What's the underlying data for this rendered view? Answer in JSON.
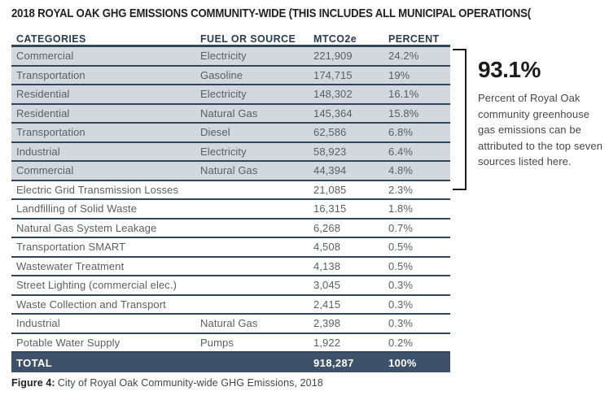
{
  "title": "2018 ROYAL OAK GHG EMISSIONS COMMUNITY-WIDE (THIS INCLUDES ALL MUNICIPAL OPERATIONS(",
  "table": {
    "headers": [
      "CATEGORIES",
      "FUEL OR SOURCE",
      "MTCO2e",
      "PERCENT"
    ],
    "top_rows_shaded": 7,
    "rows": [
      {
        "category": "Commercial",
        "fuel": "Electricity",
        "mtco2e": "221,909",
        "percent": "24.2%"
      },
      {
        "category": "Transportation",
        "fuel": "Gasoline",
        "mtco2e": "174,715",
        "percent": "19%"
      },
      {
        "category": "Residential",
        "fuel": "Electricity",
        "mtco2e": "148,302",
        "percent": "16.1%"
      },
      {
        "category": "Residential",
        "fuel": "Natural Gas",
        "mtco2e": "145,364",
        "percent": "15.8%"
      },
      {
        "category": "Transportation",
        "fuel": "Diesel",
        "mtco2e": "62,586",
        "percent": "6.8%"
      },
      {
        "category": "Industrial",
        "fuel": "Electricity",
        "mtco2e": "58,923",
        "percent": "6.4%"
      },
      {
        "category": "Commercial",
        "fuel": "Natural Gas",
        "mtco2e": "44,394",
        "percent": "4.8%"
      },
      {
        "category": "Electric Grid Transmission Losses",
        "fuel": "",
        "mtco2e": "21,085",
        "percent": "2.3%"
      },
      {
        "category": "Landfilling of Solid Waste",
        "fuel": "",
        "mtco2e": "16,315",
        "percent": "1.8%"
      },
      {
        "category": "Natural Gas System Leakage",
        "fuel": "",
        "mtco2e": "6,268",
        "percent": "0.7%"
      },
      {
        "category": "Transportation SMART",
        "fuel": "",
        "mtco2e": "4,508",
        "percent": "0.5%"
      },
      {
        "category": "Wastewater Treatment",
        "fuel": "",
        "mtco2e": "4,138",
        "percent": "0.5%"
      },
      {
        "category": "Street Lighting (commercial elec.)",
        "fuel": "",
        "mtco2e": "3,045",
        "percent": "0.3%"
      },
      {
        "category": "Waste Collection and Transport",
        "fuel": "",
        "mtco2e": "2,415",
        "percent": "0.3%"
      },
      {
        "category": "Industrial",
        "fuel": "Natural Gas",
        "mtco2e": "2,398",
        "percent": "0.3%"
      },
      {
        "category": "Potable Water Supply",
        "fuel": "Pumps",
        "mtco2e": "1,922",
        "percent": "0.2%"
      }
    ],
    "total": {
      "label": "TOTAL",
      "fuel": "",
      "mtco2e": "918,287",
      "percent": "100%"
    }
  },
  "callout": {
    "stat": "93.1%",
    "description": "Percent of Royal Oak community greenhouse gas emissions can be attributed to the top seven sources listed here."
  },
  "caption": {
    "prefix": "Figure 4:",
    "text": "City of Royal Oak Community-wide GHG Emissions, 2018"
  },
  "colors": {
    "shaded_row_bg": "#d3d8de",
    "row_divider": "#31455a",
    "total_row_bg": "#3d5268",
    "header_text": "#2a3d50",
    "bracket": "#1d1d1b"
  }
}
